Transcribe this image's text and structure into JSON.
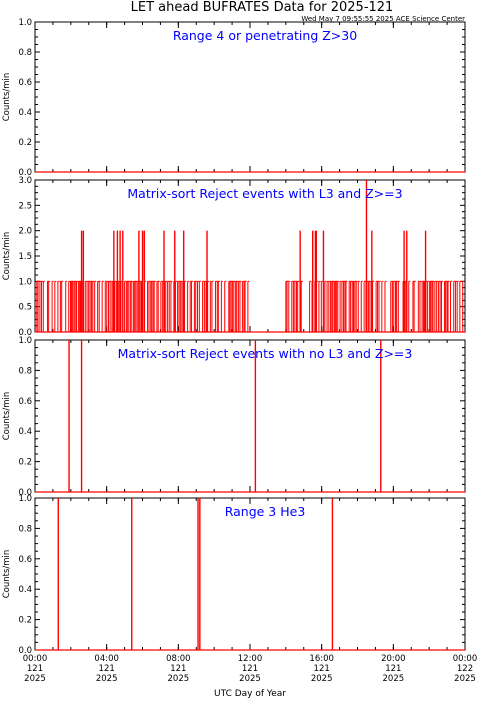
{
  "header": {
    "title": "LET ahead BUFRATES Data for 2025-121",
    "stamp": "Wed May  7 09:55:55 2025 ACE Science Center"
  },
  "colors": {
    "background": "#ffffff",
    "axes": "#000000",
    "data": "#ff0000",
    "annotation": "#0000ff"
  },
  "x_axis": {
    "label": "UTC Day of Year",
    "range_hours": [
      0,
      24
    ],
    "ticks": [
      {
        "hour": 0,
        "time": "00:00",
        "doy": "121",
        "year": "2025"
      },
      {
        "hour": 4,
        "time": "04:00",
        "doy": "121",
        "year": "2025"
      },
      {
        "hour": 8,
        "time": "08:00",
        "doy": "121",
        "year": "2025"
      },
      {
        "hour": 12,
        "time": "12:00",
        "doy": "121",
        "year": "2025"
      },
      {
        "hour": 16,
        "time": "16:00",
        "doy": "121",
        "year": "2025"
      },
      {
        "hour": 20,
        "time": "20:00",
        "doy": "121",
        "year": "2025"
      },
      {
        "hour": 24,
        "time": "00:00",
        "doy": "122",
        "year": "2025"
      }
    ]
  },
  "chart_data": [
    {
      "type": "line",
      "annotation": "Range 4 or  penetrating Z>30",
      "ylabel": "Counts/min",
      "ylim": [
        0,
        1
      ],
      "yticks": [
        "0.0",
        "0.2",
        "0.4",
        "0.6",
        "0.8",
        "1.0"
      ],
      "baseline": 0,
      "spikes": []
    },
    {
      "type": "line",
      "annotation": "Matrix-sort Reject events with L3 and Z>=3",
      "ylabel": "Counts/min",
      "ylim": [
        0,
        3
      ],
      "yticks": [
        "0.0",
        "0.5",
        "1.0",
        "1.5",
        "2.0",
        "2.5",
        "3.0"
      ],
      "baseline": 0,
      "dense_ones_ranges_hours": [
        [
          0.1,
          12.0
        ],
        [
          14.0,
          23.9
        ]
      ],
      "spikes": [
        {
          "x": 2.6,
          "y": 2
        },
        {
          "x": 2.7,
          "y": 2
        },
        {
          "x": 4.4,
          "y": 2
        },
        {
          "x": 4.6,
          "y": 2
        },
        {
          "x": 4.75,
          "y": 2
        },
        {
          "x": 4.9,
          "y": 2
        },
        {
          "x": 5.8,
          "y": 2
        },
        {
          "x": 6.0,
          "y": 2
        },
        {
          "x": 6.1,
          "y": 2
        },
        {
          "x": 7.2,
          "y": 2
        },
        {
          "x": 7.8,
          "y": 2
        },
        {
          "x": 8.3,
          "y": 2
        },
        {
          "x": 9.6,
          "y": 2
        },
        {
          "x": 14.8,
          "y": 2
        },
        {
          "x": 15.5,
          "y": 2
        },
        {
          "x": 15.65,
          "y": 2
        },
        {
          "x": 15.7,
          "y": 2
        },
        {
          "x": 16.1,
          "y": 2
        },
        {
          "x": 18.5,
          "y": 3
        },
        {
          "x": 18.8,
          "y": 2
        },
        {
          "x": 20.6,
          "y": 2
        },
        {
          "x": 20.75,
          "y": 2
        },
        {
          "x": 21.8,
          "y": 2
        }
      ]
    },
    {
      "type": "line",
      "annotation": "Matrix-sort Reject events with no L3 and Z>=3",
      "ylabel": "Counts/min",
      "ylim": [
        0,
        1
      ],
      "yticks": [
        "0.0",
        "0.2",
        "0.4",
        "0.6",
        "0.8",
        "1.0"
      ],
      "baseline": 0,
      "spikes": [
        {
          "x": 1.9,
          "y": 1
        },
        {
          "x": 2.6,
          "y": 1
        },
        {
          "x": 12.3,
          "y": 1
        },
        {
          "x": 19.3,
          "y": 1
        }
      ]
    },
    {
      "type": "line",
      "annotation": "Range 3 He3",
      "ylabel": "Counts/min",
      "ylim": [
        0,
        1
      ],
      "yticks": [
        "0.0",
        "0.2",
        "0.4",
        "0.6",
        "0.8",
        "1.0"
      ],
      "baseline": 0,
      "spikes": [
        {
          "x": 1.3,
          "y": 1
        },
        {
          "x": 5.4,
          "y": 1
        },
        {
          "x": 9.1,
          "y": 1
        },
        {
          "x": 9.2,
          "y": 1
        },
        {
          "x": 16.6,
          "y": 1
        }
      ]
    }
  ]
}
